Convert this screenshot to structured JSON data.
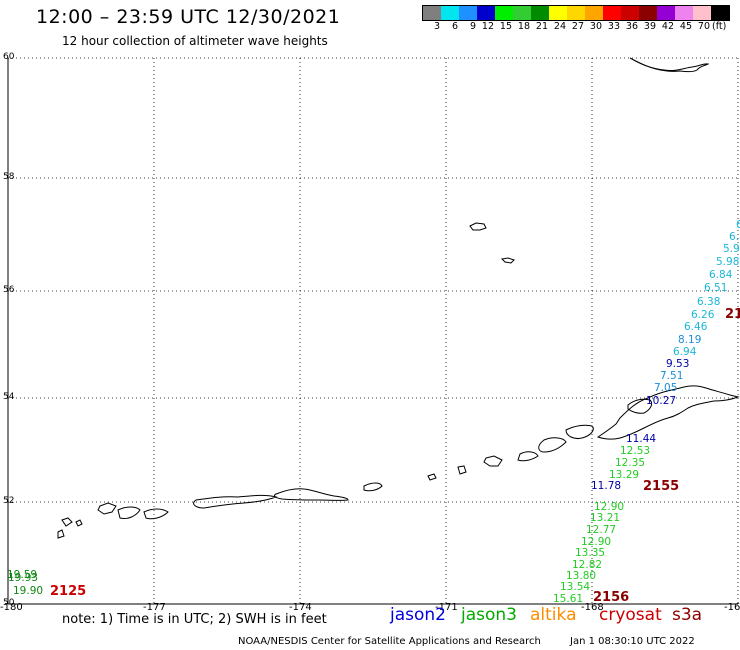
{
  "header": {
    "title": "12:00 – 23:59 UTC 12/30/2021",
    "subtitle": "12 hour collection of altimeter wave heights"
  },
  "legend": {
    "unit": "(ft)",
    "bins": [
      {
        "color": "#7f7f7f",
        "label": "3"
      },
      {
        "color": "#00e5ee",
        "label": "6"
      },
      {
        "color": "#1e90ff",
        "label": "9"
      },
      {
        "color": "#0000cd",
        "label": "12"
      },
      {
        "color": "#00ee00",
        "label": "15"
      },
      {
        "color": "#32cd32",
        "label": "18"
      },
      {
        "color": "#008b00",
        "label": "21"
      },
      {
        "color": "#ffff00",
        "label": "24"
      },
      {
        "color": "#ffd700",
        "label": "27"
      },
      {
        "color": "#ffa500",
        "label": "30"
      },
      {
        "color": "#ff0000",
        "label": "33"
      },
      {
        "color": "#cd0000",
        "label": "36"
      },
      {
        "color": "#8b0000",
        "label": "39"
      },
      {
        "color": "#9400d3",
        "label": "42"
      },
      {
        "color": "#ee82ee",
        "label": "45"
      },
      {
        "color": "#ffc0cb",
        "label": "70"
      },
      {
        "color": "#000000",
        "label": ""
      }
    ]
  },
  "axes": {
    "lat_ticks": [
      "60",
      "58",
      "56",
      "54",
      "52",
      "50"
    ],
    "lon_ticks": [
      "-180",
      "-177",
      "-174",
      "-171",
      "-168",
      "-16"
    ]
  },
  "note": "note: 1) Time is in UTC; 2) SWH is in feet",
  "satellites": [
    {
      "name": "jason2",
      "color": "#0000dd"
    },
    {
      "name": "jason3",
      "color": "#00aa00"
    },
    {
      "name": "altika",
      "color": "#ff8c00"
    },
    {
      "name": "cryosat",
      "color": "#cc0000"
    },
    {
      "name": "s3a",
      "color": "#8b0000"
    }
  ],
  "footer": {
    "credit": "NOAA/NESDIS Center for Satellite Applications and Research",
    "timestamp": "Jan  1 08:30:10 UTC 2022"
  },
  "observations": [
    {
      "value": "6",
      "color": "#1ab8d6"
    },
    {
      "value": "6.",
      "color": "#1ab8d6"
    },
    {
      "value": "5.9",
      "color": "#1ab8d6"
    },
    {
      "value": "5.98",
      "color": "#1ab8d6"
    },
    {
      "value": "6.84",
      "color": "#1ab8d6"
    },
    {
      "value": "6.51",
      "color": "#1ab8d6"
    },
    {
      "value": "6.38",
      "color": "#1ab8d6"
    },
    {
      "value": "6.26",
      "color": "#1ab8d6"
    },
    {
      "value": "6.46",
      "color": "#1ab8d6"
    },
    {
      "value": "8.19",
      "color": "#1a8fd6"
    },
    {
      "value": "6.94",
      "color": "#1ab8d6"
    },
    {
      "value": "9.53",
      "color": "#0000aa"
    },
    {
      "value": "7.51",
      "color": "#1a8fd6"
    },
    {
      "value": "7.05",
      "color": "#1a8fd6"
    },
    {
      "value": "10.27",
      "color": "#0000aa"
    },
    {
      "value": "11.44",
      "color": "#0000aa"
    },
    {
      "value": "12.53",
      "color": "#22cc22"
    },
    {
      "value": "12.35",
      "color": "#22cc22"
    },
    {
      "value": "13.29",
      "color": "#22cc22"
    },
    {
      "value": "11.78",
      "color": "#0000aa"
    },
    {
      "value": "12.90",
      "color": "#22cc22"
    },
    {
      "value": "13.21",
      "color": "#22cc22"
    },
    {
      "value": "12.77",
      "color": "#22cc22"
    },
    {
      "value": "12.90",
      "color": "#22cc22"
    },
    {
      "value": "13.35",
      "color": "#22cc22"
    },
    {
      "value": "12.82",
      "color": "#22cc22"
    },
    {
      "value": "13.80",
      "color": "#22cc22"
    },
    {
      "value": "13.54",
      "color": "#22cc22"
    },
    {
      "value": "15.61",
      "color": "#22cc22"
    },
    {
      "value": "19.59",
      "color": "#118811"
    },
    {
      "value": "19.93",
      "color": "#118811"
    },
    {
      "value": "19.90",
      "color": "#118811"
    }
  ],
  "pass_labels": [
    {
      "text": "21",
      "color": "#8b0000"
    },
    {
      "text": "2155",
      "color": "#8b0000"
    },
    {
      "text": "2156",
      "color": "#8b0000"
    },
    {
      "text": "2125",
      "color": "#cc0000"
    }
  ]
}
